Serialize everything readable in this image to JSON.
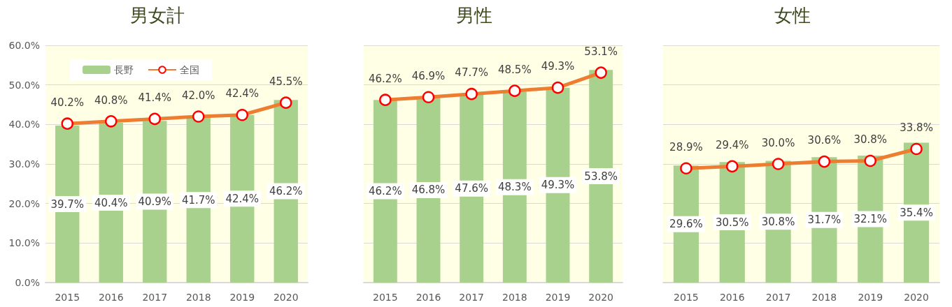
{
  "chart_data": [
    {
      "type": "bar",
      "title": "男女計",
      "categories": [
        "2015",
        "2016",
        "2017",
        "2018",
        "2019",
        "2020"
      ],
      "series": [
        {
          "name": "長野",
          "color": "#a9d18e",
          "values": [
            39.7,
            40.4,
            40.9,
            41.7,
            42.4,
            46.2
          ],
          "value_labels": [
            "39.7%",
            "40.4%",
            "40.9%",
            "41.7%",
            "42.4%",
            "46.2%"
          ]
        },
        {
          "name": "全国",
          "type": "line",
          "color": "#ed7d31",
          "values": [
            40.2,
            40.8,
            41.4,
            42.0,
            42.4,
            45.5
          ],
          "value_labels": [
            "40.2%",
            "40.8%",
            "41.4%",
            "42.0%",
            "42.4%",
            "45.5%"
          ]
        }
      ],
      "ylim": [
        0,
        60
      ],
      "yticks": [
        {
          "value": 0,
          "label": "0.0%"
        },
        {
          "value": 10,
          "label": "10.0%"
        },
        {
          "value": 20,
          "label": "20.0%"
        },
        {
          "value": 30,
          "label": "30.0%"
        },
        {
          "value": 40,
          "label": "40.0%"
        },
        {
          "value": 50,
          "label": "50.0%"
        },
        {
          "value": 60,
          "label": "60.0%"
        }
      ],
      "grid": "y",
      "legend": "top left",
      "marker": "circle"
    },
    {
      "type": "bar",
      "title": "男性",
      "categories": [
        "2015",
        "2016",
        "2017",
        "2018",
        "2019",
        "2020"
      ],
      "series": [
        {
          "color": "#a9d18e",
          "values": [
            46.2,
            46.8,
            47.6,
            48.3,
            49.3,
            53.8
          ],
          "value_labels": [
            "46.2%",
            "46.8%",
            "47.6%",
            "48.3%",
            "49.3%",
            "53.8%"
          ]
        },
        {
          "type": "line",
          "color": "#ed7d31",
          "values": [
            46.2,
            46.9,
            47.7,
            48.5,
            49.3,
            53.1
          ],
          "value_labels": [
            "46.2%",
            "46.9%",
            "47.7%",
            "48.5%",
            "49.3%",
            "53.1%"
          ]
        }
      ],
      "ylim": [
        0,
        60
      ],
      "yticks": [
        {
          "value": 0,
          "label": null
        },
        {
          "value": 10,
          "label": null
        },
        {
          "value": 20,
          "label": null
        },
        {
          "value": 30,
          "label": null
        },
        {
          "value": 40,
          "label": null
        },
        {
          "value": 50,
          "label": null
        },
        {
          "value": 60,
          "label": null
        }
      ],
      "grid": "y",
      "tick_labels": "x",
      "marker": "circle"
    },
    {
      "type": "bar",
      "title": "女性",
      "categories": [
        "2015",
        "2016",
        "2017",
        "2018",
        "2019",
        "2020"
      ],
      "series": [
        {
          "color": "#a9d18e",
          "values": [
            29.6,
            30.5,
            30.8,
            31.7,
            32.1,
            35.4
          ],
          "value_labels": [
            "29.6%",
            "30.5%",
            "30.8%",
            "31.7%",
            "32.1%",
            "35.4%"
          ]
        },
        {
          "type": "line",
          "color": "#ed7d31",
          "values": [
            28.9,
            29.4,
            30.0,
            30.6,
            30.8,
            33.8
          ],
          "value_labels": [
            "28.9%",
            "29.4%",
            "30.0%",
            "30.6%",
            "30.8%",
            "33.8%"
          ]
        }
      ],
      "ylim": [
        0,
        60
      ],
      "yticks": [
        {
          "value": 0,
          "label": null
        },
        {
          "value": 10,
          "label": null
        },
        {
          "value": 20,
          "label": null
        },
        {
          "value": 30,
          "label": null
        },
        {
          "value": 40,
          "label": null
        },
        {
          "value": 50,
          "label": null
        },
        {
          "value": 60,
          "label": null
        }
      ],
      "grid": "y",
      "tick_labels": "x",
      "marker": "circle"
    }
  ]
}
